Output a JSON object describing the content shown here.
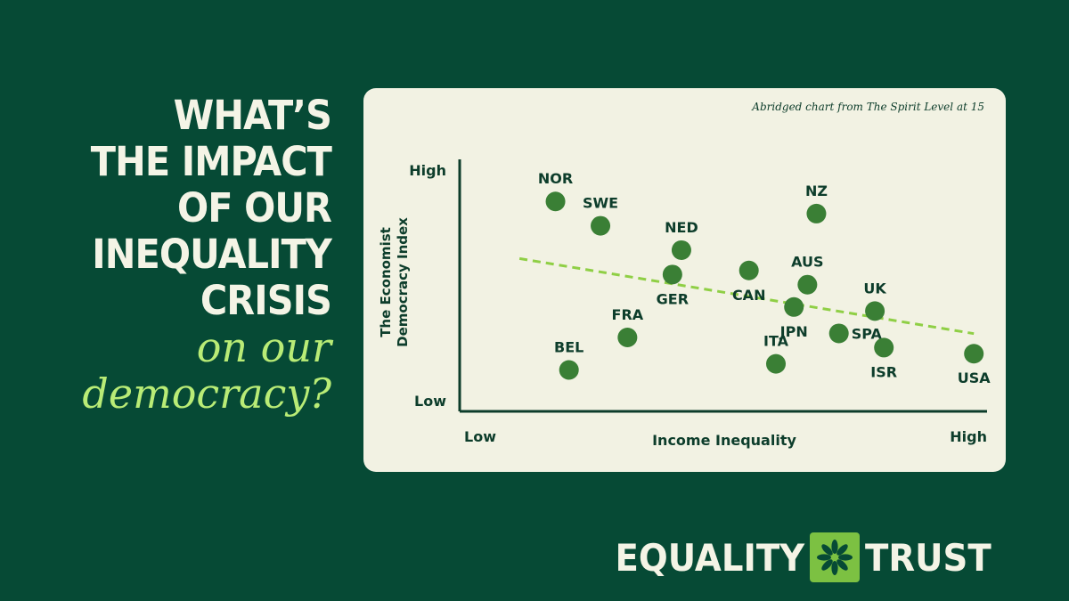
{
  "headline": {
    "lines": [
      "WHAT’S",
      "THE IMPACT",
      "OF OUR",
      "INEQUALITY",
      "CRISIS"
    ],
    "accent_lines": [
      "on our",
      "democracy?"
    ]
  },
  "chart_note": "Abridged chart from The Spirit Level at 15",
  "chart_data": {
    "type": "scatter",
    "xlabel": "Income Inequality",
    "ylabel": "The Economist Democracy Index",
    "x_tick_labels": [
      "Low",
      "High"
    ],
    "y_tick_labels": [
      "Low",
      "High"
    ],
    "xlim": [
      0,
      100
    ],
    "ylim": [
      0,
      100
    ],
    "trendline": true,
    "points": [
      {
        "label": "NOR",
        "x": 11,
        "y": 92,
        "label_pos": "above"
      },
      {
        "label": "SWE",
        "x": 21,
        "y": 80,
        "label_pos": "above"
      },
      {
        "label": "NED",
        "x": 39,
        "y": 68,
        "label_pos": "above"
      },
      {
        "label": "GER",
        "x": 37,
        "y": 56,
        "label_pos": "below"
      },
      {
        "label": "CAN",
        "x": 54,
        "y": 58,
        "label_pos": "below"
      },
      {
        "label": "NZ",
        "x": 69,
        "y": 86,
        "label_pos": "above"
      },
      {
        "label": "AUS",
        "x": 67,
        "y": 51,
        "label_pos": "above"
      },
      {
        "label": "JPN",
        "x": 64,
        "y": 40,
        "label_pos": "below"
      },
      {
        "label": "UK",
        "x": 82,
        "y": 38,
        "label_pos": "above"
      },
      {
        "label": "SPA",
        "x": 74,
        "y": 27,
        "label_pos": "right"
      },
      {
        "label": "ISR",
        "x": 84,
        "y": 20,
        "label_pos": "below"
      },
      {
        "label": "ITA",
        "x": 60,
        "y": 12,
        "label_pos": "above"
      },
      {
        "label": "USA",
        "x": 104,
        "y": 17,
        "label_pos": "below"
      },
      {
        "label": "FRA",
        "x": 27,
        "y": 25,
        "label_pos": "above"
      },
      {
        "label": "BEL",
        "x": 14,
        "y": 9,
        "label_pos": "above"
      }
    ],
    "colors": {
      "point": "#3a7f35",
      "trend": "#8fcf45",
      "axis": "#0d3d2b",
      "text": "#0d3d2b"
    }
  },
  "logo": {
    "word1": "EQUALITY",
    "word2": "TRUST",
    "mark_icon": "flower-asterisk-icon"
  }
}
